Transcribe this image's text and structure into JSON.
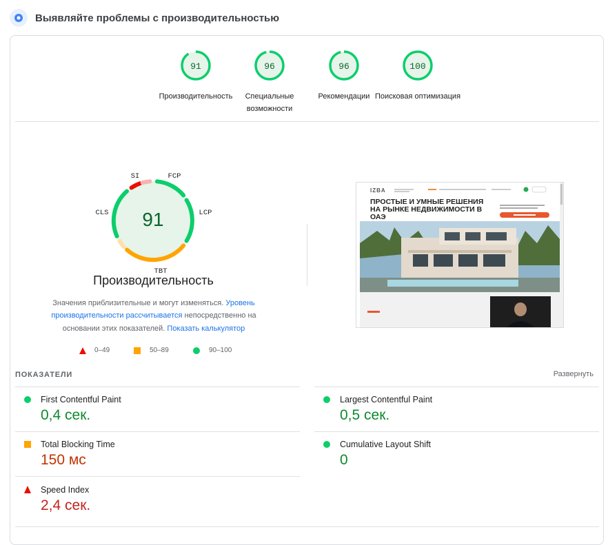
{
  "header": {
    "title": "Выявляйте проблемы с производительностью",
    "icon": "lighthouse-icon"
  },
  "scores": [
    {
      "value": "91",
      "label": "Производительность"
    },
    {
      "value": "96",
      "label": "Специальные возможности"
    },
    {
      "value": "96",
      "label": "Рекомендации"
    },
    {
      "value": "100",
      "label": "Поисковая оптимизация"
    }
  ],
  "performance": {
    "score": "91",
    "title": "Производительность",
    "segments": {
      "si": "SI",
      "fcp": "FCP",
      "lcp": "LCP",
      "tbt": "TBT",
      "cls": "CLS"
    },
    "desc_text1": "Значения приблизительные и могут изменяться.",
    "desc_link1": "Уровень производительности рассчитывается",
    "desc_text2": "непосредственно на основании этих показателей.",
    "desc_link2": "Показать калькулятор"
  },
  "legend": {
    "bad": "0–49",
    "average": "50–89",
    "good": "90–100"
  },
  "preview": {
    "logo": "IZBA",
    "headline1": "ПРОСТЫЕ И УМНЫЕ РЕШЕНИЯ",
    "headline2": "НА РЫНКЕ НЕДВИЖИМОСТИ В",
    "headline3": "ОАЭ"
  },
  "metrics_section": {
    "title": "ПОКАЗАТЕЛИ",
    "expand": "Развернуть"
  },
  "metrics": {
    "fcp": {
      "name": "First Contentful Paint",
      "value": "0,4 сек."
    },
    "lcp": {
      "name": "Largest Contentful Paint",
      "value": "0,5 сек."
    },
    "tbt": {
      "name": "Total Blocking Time",
      "value": "150 мс"
    },
    "cls": {
      "name": "Cumulative Layout Shift",
      "value": "0"
    },
    "si": {
      "name": "Speed Index",
      "value": "2,4 сек."
    }
  },
  "colors": {
    "good": "#0cce6b",
    "average": "#ffa400",
    "bad": "#eb0f00",
    "link": "#1a73e8"
  }
}
